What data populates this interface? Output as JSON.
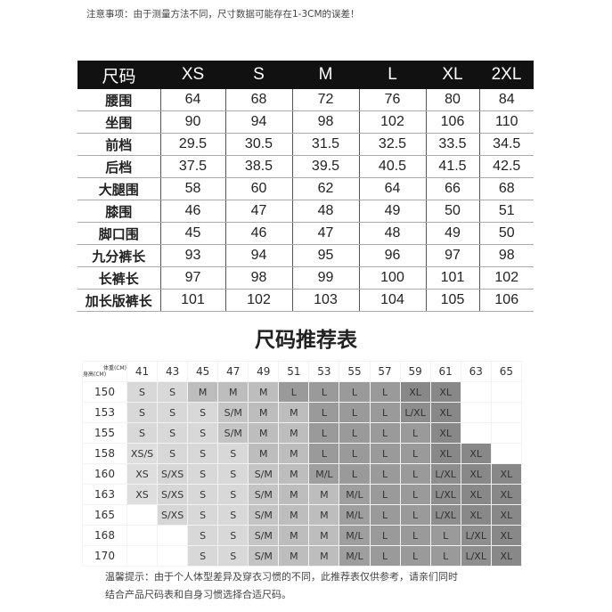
{
  "note": "注意事项：由于测量方法不同，尺寸数据可能存在1-3CM的误差！",
  "size_table": {
    "headers": [
      "尺码",
      "XS",
      "S",
      "M",
      "L",
      "XL",
      "2XL"
    ],
    "rows": [
      [
        "腰围",
        "64",
        "68",
        "72",
        "76",
        "80",
        "84"
      ],
      [
        "坐围",
        "90",
        "94",
        "98",
        "102",
        "106",
        "110"
      ],
      [
        "前档",
        "29.5",
        "30.5",
        "31.5",
        "32.5",
        "33.5",
        "34.5"
      ],
      [
        "后档",
        "37.5",
        "38.5",
        "39.5",
        "40.5",
        "41.5",
        "42.5"
      ],
      [
        "大腿围",
        "58",
        "60",
        "62",
        "64",
        "66",
        "68"
      ],
      [
        "膝围",
        "46",
        "47",
        "48",
        "49",
        "50",
        "51"
      ],
      [
        "脚口围",
        "45",
        "46",
        "47",
        "48",
        "49",
        "50"
      ],
      [
        "九分裤长",
        "93",
        "94",
        "95",
        "96",
        "97",
        "98"
      ],
      [
        "长裤长",
        "97",
        "98",
        "99",
        "100",
        "101",
        "102"
      ],
      [
        "加长版裤长",
        "101",
        "102",
        "103",
        "104",
        "105",
        "106"
      ]
    ]
  },
  "rec_title": "尺码推荐表",
  "rec_table": {
    "weight_label": "体重(CM)",
    "height_label": "身高(CM)",
    "weights": [
      "41",
      "43",
      "45",
      "47",
      "49",
      "51",
      "53",
      "55",
      "57",
      "59",
      "61",
      "63",
      "65"
    ],
    "rows": [
      {
        "height": "150",
        "cells": [
          "S",
          "S",
          "M",
          "M",
          "M",
          "L",
          "L",
          "L",
          "L",
          "XL",
          "XL",
          "",
          ""
        ]
      },
      {
        "height": "153",
        "cells": [
          "S",
          "S",
          "S",
          "S/M",
          "M",
          "M",
          "L",
          "L",
          "L",
          "L/XL",
          "XL",
          "",
          ""
        ]
      },
      {
        "height": "155",
        "cells": [
          "S",
          "S",
          "S",
          "S/M",
          "M",
          "M",
          "L",
          "L",
          "L",
          "L",
          "XL",
          "",
          ""
        ]
      },
      {
        "height": "158",
        "cells": [
          "XS/S",
          "S",
          "S",
          "S",
          "M",
          "M",
          "L",
          "L",
          "L",
          "L",
          "XL",
          "XL",
          ""
        ]
      },
      {
        "height": "160",
        "cells": [
          "XS",
          "S/XS",
          "S",
          "S",
          "S/M",
          "M",
          "M/L",
          "L",
          "L",
          "L",
          "L/XL",
          "XL",
          "XL"
        ]
      },
      {
        "height": "163",
        "cells": [
          "XS",
          "S/XS",
          "S",
          "S",
          "S/M",
          "M",
          "M",
          "M/L",
          "L",
          "L",
          "L/XL",
          "XL",
          "XL"
        ]
      },
      {
        "height": "165",
        "cells": [
          "",
          "S/XS",
          "S",
          "S",
          "S/M",
          "M",
          "M",
          "M/L",
          "L",
          "L",
          "L/XL",
          "XL",
          "XL"
        ]
      },
      {
        "height": "168",
        "cells": [
          "",
          "",
          "S",
          "S",
          "S/M",
          "M",
          "M",
          "M/L",
          "L",
          "L",
          "L",
          "L/XL",
          "XL"
        ]
      },
      {
        "height": "170",
        "cells": [
          "",
          "",
          "S",
          "S",
          "S/M",
          "M",
          "M",
          "M/L",
          "L",
          "L",
          "L",
          "L/XL",
          "XL"
        ]
      }
    ]
  },
  "hint_line1": "温馨提示：由于个人体型差异及穿衣习惯的不同，此推荐表仅供参考，请亲们同时",
  "hint_line2": "结合产品尺码表和自身习惯选择合适尺码。"
}
